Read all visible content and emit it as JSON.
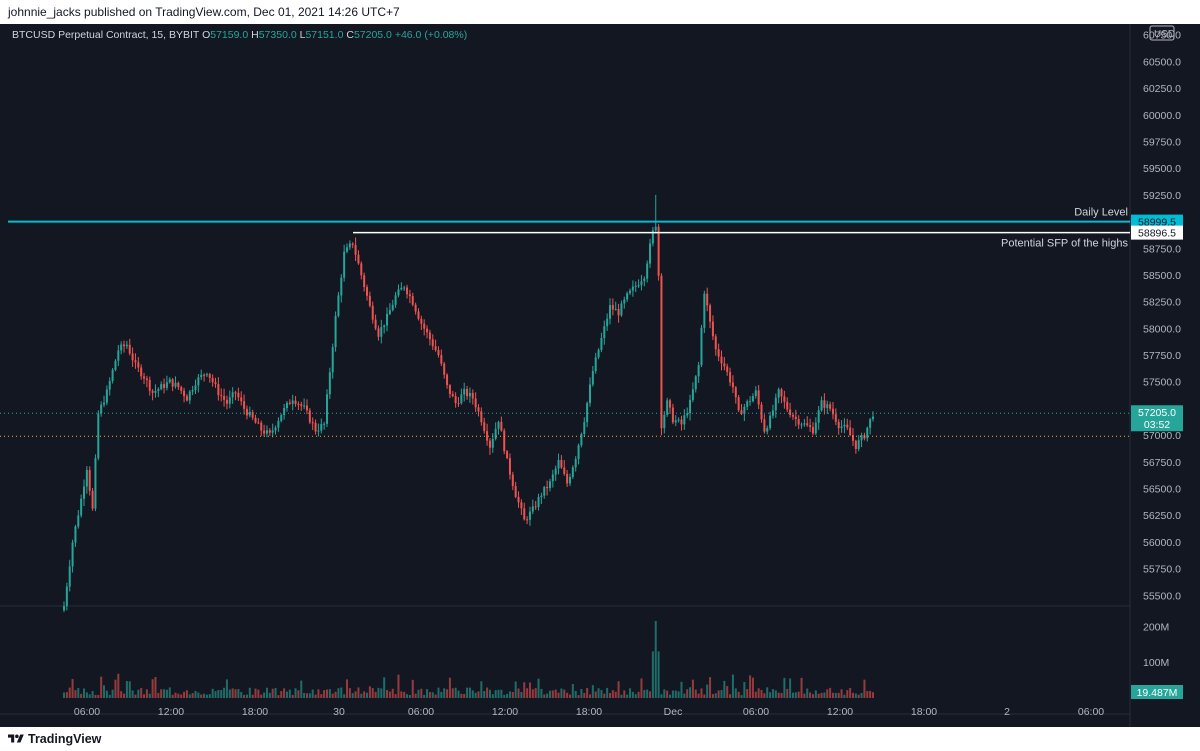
{
  "header": {
    "text": "johnnie_jacks published on TradingView.com, Dec 01, 2021 14:26 UTC+7"
  },
  "footer": {
    "brand": "TradingView"
  },
  "symbol": {
    "name": "BTCUSD Perpetual Contract, 15, BYBIT",
    "o_label": "O",
    "o": "57159.0",
    "h_label": "H",
    "h": "57350.0",
    "l_label": "L",
    "l": "57151.0",
    "c_label": "C",
    "c": "57205.0",
    "change": "+46.0 (+0.08%)"
  },
  "colors": {
    "up": "#26a69a",
    "down": "#ef5350",
    "daily_level": "#00bcd4",
    "sfp_line": "#ffffff",
    "background": "#131722"
  },
  "chart_data": {
    "type": "candlestick",
    "currency_label": "USD",
    "y_ticks": [
      "60750.0",
      "60500.0",
      "60250.0",
      "60000.0",
      "59750.0",
      "59500.0",
      "59250.0",
      "59000.0",
      "58750.0",
      "58500.0",
      "58250.0",
      "58000.0",
      "57750.0",
      "57500.0",
      "57250.0",
      "57000.0",
      "56750.0",
      "56500.0",
      "56250.0",
      "56000.0",
      "55750.0",
      "55500.0"
    ],
    "ylim": [
      55400,
      60850
    ],
    "x_ticks": [
      "06:00",
      "12:00",
      "18:00",
      "30",
      "06:00",
      "12:00",
      "18:00",
      "Dec",
      "06:00",
      "12:00",
      "18:00",
      "2",
      "06:00"
    ],
    "volume_ticks": [
      "200M",
      "100M"
    ],
    "volume_max": 240,
    "price_anchors": [
      [
        0,
        55400
      ],
      [
        3,
        56000
      ],
      [
        6,
        56400
      ],
      [
        8,
        56700
      ],
      [
        10,
        56300
      ],
      [
        12,
        57200
      ],
      [
        15,
        57400
      ],
      [
        19,
        57800
      ],
      [
        22,
        57850
      ],
      [
        25,
        57650
      ],
      [
        28,
        57550
      ],
      [
        31,
        57400
      ],
      [
        34,
        57450
      ],
      [
        37,
        57500
      ],
      [
        40,
        57450
      ],
      [
        43,
        57350
      ],
      [
        46,
        57500
      ],
      [
        50,
        57600
      ],
      [
        54,
        57400
      ],
      [
        57,
        57300
      ],
      [
        60,
        57400
      ],
      [
        63,
        57250
      ],
      [
        66,
        57150
      ],
      [
        69,
        57050
      ],
      [
        72,
        57000
      ],
      [
        76,
        57200
      ],
      [
        80,
        57350
      ],
      [
        84,
        57250
      ],
      [
        88,
        57050
      ],
      [
        91,
        57100
      ],
      [
        95,
        58100
      ],
      [
        98,
        58700
      ],
      [
        101,
        58800
      ],
      [
        104,
        58500
      ],
      [
        107,
        58200
      ],
      [
        110,
        57950
      ],
      [
        113,
        58100
      ],
      [
        116,
        58300
      ],
      [
        119,
        58400
      ],
      [
        122,
        58250
      ],
      [
        125,
        58050
      ],
      [
        128,
        57900
      ],
      [
        131,
        57750
      ],
      [
        134,
        57450
      ],
      [
        137,
        57300
      ],
      [
        140,
        57400
      ],
      [
        143,
        57350
      ],
      [
        146,
        57150
      ],
      [
        149,
        56900
      ],
      [
        152,
        57150
      ],
      [
        155,
        56750
      ],
      [
        158,
        56450
      ],
      [
        161,
        56200
      ],
      [
        164,
        56300
      ],
      [
        167,
        56450
      ],
      [
        170,
        56550
      ],
      [
        173,
        56750
      ],
      [
        176,
        56550
      ],
      [
        179,
        56800
      ],
      [
        182,
        57150
      ],
      [
        185,
        57600
      ],
      [
        188,
        57900
      ],
      [
        191,
        58200
      ],
      [
        194,
        58150
      ],
      [
        197,
        58300
      ],
      [
        200,
        58400
      ],
      [
        203,
        58500
      ],
      [
        206,
        58900
      ],
      [
        207,
        58950
      ],
      [
        208,
        58500
      ],
      [
        209,
        57100
      ],
      [
        211,
        57300
      ],
      [
        213,
        57150
      ],
      [
        216,
        57100
      ],
      [
        219,
        57300
      ],
      [
        222,
        57650
      ],
      [
        224,
        58350
      ],
      [
        226,
        58050
      ],
      [
        228,
        57800
      ],
      [
        231,
        57650
      ],
      [
        234,
        57450
      ],
      [
        236,
        57200
      ],
      [
        239,
        57300
      ],
      [
        242,
        57400
      ],
      [
        245,
        57050
      ],
      [
        247,
        57150
      ],
      [
        250,
        57400
      ],
      [
        253,
        57250
      ],
      [
        256,
        57150
      ],
      [
        259,
        57100
      ],
      [
        262,
        57050
      ],
      [
        265,
        57300
      ],
      [
        268,
        57250
      ],
      [
        271,
        57100
      ],
      [
        274,
        57050
      ],
      [
        277,
        56900
      ],
      [
        280,
        57000
      ],
      [
        283,
        57205
      ]
    ],
    "annotations": [
      {
        "label": "Daily Level",
        "price": 58999.5,
        "price_label": "58999.5"
      },
      {
        "label": "Potential SFP of the highs",
        "price": 58896.5,
        "price_label": "58896.5"
      }
    ],
    "last_price": {
      "value": "57205.0",
      "countdown": "03:52",
      "value_num": 57205
    },
    "dotted_level": 56990,
    "volume_last": "19.487M"
  }
}
